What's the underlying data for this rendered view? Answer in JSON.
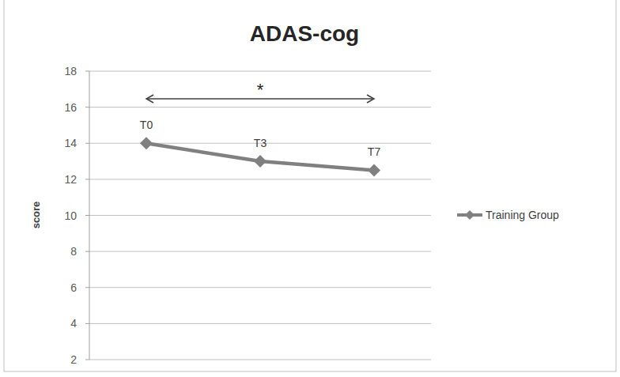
{
  "chart_data": {
    "type": "line",
    "title": "ADAS-cog",
    "y_label": "score",
    "categories": [
      "T0",
      "T3",
      "T7"
    ],
    "series": [
      {
        "name": "Training Group",
        "color": "#808080",
        "values": [
          14.0,
          13.0,
          12.5
        ],
        "marker": "diamond",
        "line_style": "solid"
      }
    ],
    "ylim": [
      2,
      18
    ],
    "yticks": [
      2,
      4,
      6,
      8,
      10,
      12,
      14,
      16,
      18
    ],
    "grid": true,
    "legend": "right",
    "tick_labels": "y",
    "annotations": [
      {
        "text": "*",
        "x_start": "T0",
        "x_end": "T7"
      }
    ]
  }
}
